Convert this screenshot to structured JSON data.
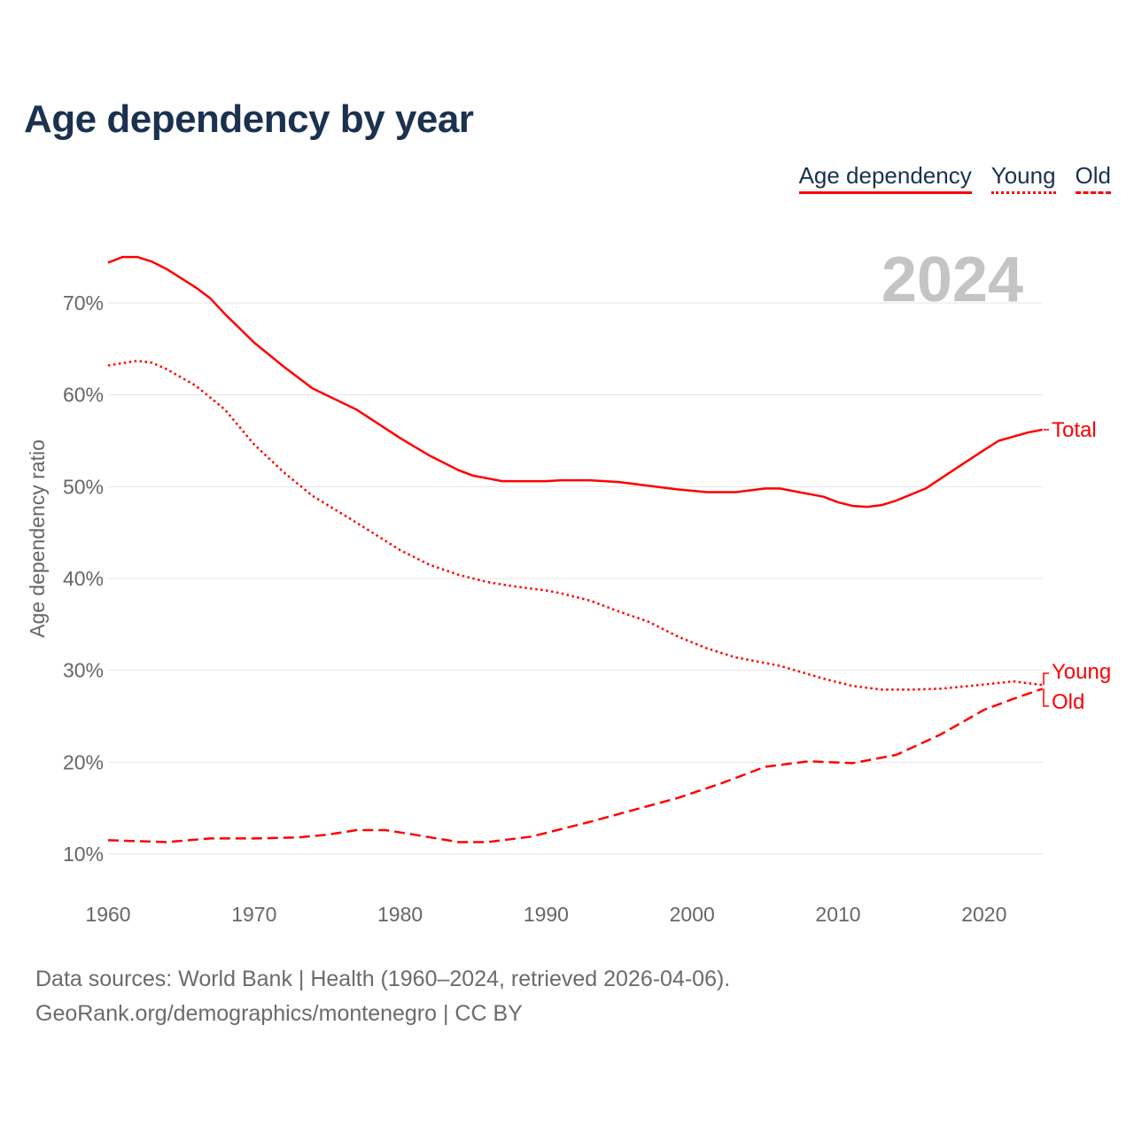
{
  "chart_data": {
    "type": "line",
    "title": "Age dependency by year",
    "xlabel": "",
    "ylabel": "Age dependency ratio",
    "xlim": [
      1960,
      2024
    ],
    "ylim": [
      10,
      75
    ],
    "xticks": [
      "1960",
      "1970",
      "1980",
      "1990",
      "2000",
      "2010",
      "2020"
    ],
    "yticks": [
      "10%",
      "20%",
      "30%",
      "40%",
      "50%",
      "60%",
      "70%"
    ],
    "grid": true,
    "year_watermark": "2024",
    "legend": {
      "position": "top-right",
      "entries": [
        "Age dependency",
        "Young",
        "Old"
      ]
    },
    "series": [
      {
        "name": "Total",
        "legend": "Age dependency",
        "style": "solid",
        "color": "#ff0000",
        "x": [
          1960,
          1961,
          1962,
          1963,
          1964,
          1966,
          1967,
          1968,
          1970,
          1972,
          1974,
          1977,
          1980,
          1982,
          1984,
          1985,
          1987,
          1990,
          1991,
          1993,
          1995,
          1997,
          1999,
          2001,
          2003,
          2005,
          2006,
          2009,
          2010,
          2011,
          2012,
          2013,
          2014,
          2016,
          2018,
          2020,
          2021,
          2023,
          2024
        ],
        "y": [
          74.4,
          75.0,
          75.0,
          74.5,
          73.7,
          71.7,
          70.5,
          68.8,
          65.7,
          63.1,
          60.7,
          58.4,
          55.3,
          53.4,
          51.8,
          51.2,
          50.6,
          50.6,
          50.7,
          50.7,
          50.5,
          50.1,
          49.7,
          49.4,
          49.4,
          49.8,
          49.8,
          48.9,
          48.3,
          47.9,
          47.8,
          48.0,
          48.5,
          49.8,
          51.9,
          54.0,
          55.0,
          55.9,
          56.2
        ]
      },
      {
        "name": "Young",
        "legend": "Young",
        "style": "dotted",
        "color": "#ff0000",
        "x": [
          1960,
          1962,
          1963,
          1964,
          1966,
          1968,
          1970,
          1972,
          1974,
          1977,
          1980,
          1982,
          1984,
          1986,
          1988,
          1990,
          1991,
          1993,
          1995,
          1997,
          1999,
          2001,
          2003,
          2006,
          2009,
          2011,
          2013,
          2015,
          2017,
          2019,
          2022,
          2024
        ],
        "y": [
          63.2,
          63.7,
          63.5,
          62.8,
          61.0,
          58.4,
          54.6,
          51.6,
          49.0,
          46.1,
          43.1,
          41.5,
          40.4,
          39.6,
          39.1,
          38.7,
          38.4,
          37.6,
          36.4,
          35.3,
          33.7,
          32.4,
          31.4,
          30.5,
          29.1,
          28.3,
          27.9,
          27.9,
          28.0,
          28.3,
          28.8,
          28.4
        ]
      },
      {
        "name": "Old",
        "legend": "Old",
        "style": "dashed",
        "color": "#ff0000",
        "x": [
          1960,
          1964,
          1967,
          1970,
          1973,
          1975,
          1977,
          1979,
          1981,
          1984,
          1986,
          1989,
          1991,
          1993,
          1996,
          1999,
          2002,
          2005,
          2008,
          2011,
          2014,
          2017,
          2020,
          2022,
          2024
        ],
        "y": [
          11.5,
          11.3,
          11.7,
          11.7,
          11.8,
          12.1,
          12.6,
          12.6,
          12.1,
          11.3,
          11.3,
          11.9,
          12.7,
          13.5,
          14.8,
          16.1,
          17.7,
          19.5,
          20.1,
          19.9,
          20.8,
          23.0,
          25.7,
          26.9,
          28.0
        ]
      }
    ],
    "end_labels": {
      "Total": "Total",
      "Young": "Young",
      "Old": "Old"
    }
  },
  "footer": {
    "line1": "Data sources: World Bank | Health (1960–2024, retrieved 2026-04-06).",
    "line2": "GeoRank.org/demographics/montenegro | CC BY"
  }
}
